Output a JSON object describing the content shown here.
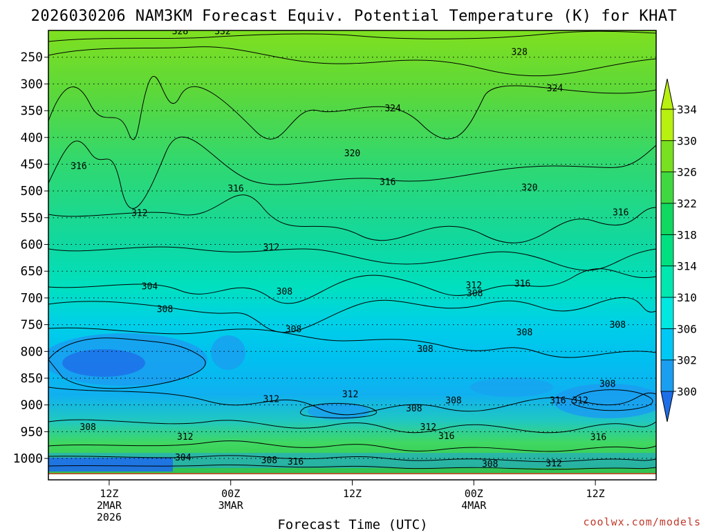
{
  "chart_data": {
    "type": "heatmap",
    "title": "2026030206 NAM3KM Forecast Equiv. Potential Temperature (K) for KHAT",
    "xlabel": "Forecast Time (UTC)",
    "ylabel": "",
    "credit": "coolwx.com/models",
    "y_axis": {
      "ticks": [
        "250",
        "300",
        "350",
        "400",
        "450",
        "500",
        "550",
        "600",
        "650",
        "700",
        "750",
        "800",
        "850",
        "900",
        "950",
        "1000"
      ],
      "values": [
        250,
        300,
        350,
        400,
        450,
        500,
        550,
        600,
        650,
        700,
        750,
        800,
        850,
        900,
        950,
        1000
      ],
      "range": [
        200,
        1040
      ]
    },
    "x_axis": {
      "range_hours": [
        0,
        60
      ],
      "ticks": [
        {
          "hour": 6,
          "lines": [
            "12Z",
            "2MAR",
            "2026"
          ]
        },
        {
          "hour": 18,
          "lines": [
            "00Z",
            "3MAR"
          ]
        },
        {
          "hour": 30,
          "lines": [
            "12Z"
          ]
        },
        {
          "hour": 42,
          "lines": [
            "00Z",
            "4MAR"
          ]
        },
        {
          "hour": 54,
          "lines": [
            "12Z"
          ]
        }
      ]
    },
    "colorbar": {
      "levels": [
        300,
        302,
        306,
        310,
        314,
        318,
        322,
        326,
        330,
        334
      ],
      "tick_labels": [
        "300",
        "302",
        "306",
        "310",
        "314",
        "318",
        "322",
        "326",
        "330",
        "334"
      ],
      "colors": [
        "#1e6ee8",
        "#1a9ef0",
        "#00c8f5",
        "#00e8e0",
        "#00e8b0",
        "#00e080",
        "#10d860",
        "#40d840",
        "#78e020",
        "#b8f010"
      ]
    },
    "contour_labels": [
      {
        "text": "328",
        "hour": 13.0,
        "p": 203
      },
      {
        "text": "332",
        "hour": 17.2,
        "p": 203
      },
      {
        "text": "328",
        "hour": 46.5,
        "p": 242
      },
      {
        "text": "324",
        "hour": 34.0,
        "p": 347
      },
      {
        "text": "324",
        "hour": 50.0,
        "p": 310
      },
      {
        "text": "320",
        "hour": 30.0,
        "p": 431
      },
      {
        "text": "320",
        "hour": 47.5,
        "p": 495
      },
      {
        "text": "316",
        "hour": 3.0,
        "p": 455
      },
      {
        "text": "316",
        "hour": 18.5,
        "p": 497
      },
      {
        "text": "316",
        "hour": 33.5,
        "p": 485
      },
      {
        "text": "316",
        "hour": 56.5,
        "p": 542
      },
      {
        "text": "316",
        "hour": 46.8,
        "p": 675
      },
      {
        "text": "312",
        "hour": 9.0,
        "p": 543
      },
      {
        "text": "312",
        "hour": 22.0,
        "p": 607
      },
      {
        "text": "312",
        "hour": 42.0,
        "p": 678
      },
      {
        "text": "312",
        "hour": 22.0,
        "p": 891
      },
      {
        "text": "312",
        "hour": 29.8,
        "p": 882
      },
      {
        "text": "312",
        "hour": 13.5,
        "p": 961
      },
      {
        "text": "304",
        "hour": 10.0,
        "p": 680
      },
      {
        "text": "304",
        "hour": 13.3,
        "p": 1000
      },
      {
        "text": "308",
        "hour": 11.5,
        "p": 723
      },
      {
        "text": "308",
        "hour": 23.3,
        "p": 690
      },
      {
        "text": "308",
        "hour": 24.2,
        "p": 760
      },
      {
        "text": "308",
        "hour": 37.2,
        "p": 797
      },
      {
        "text": "308",
        "hour": 42.1,
        "p": 693
      },
      {
        "text": "308",
        "hour": 47.0,
        "p": 766
      },
      {
        "text": "308",
        "hour": 56.2,
        "p": 752
      },
      {
        "text": "308",
        "hour": 3.9,
        "p": 943
      },
      {
        "text": "308",
        "hour": 21.8,
        "p": 1005
      },
      {
        "text": "308",
        "hour": 36.1,
        "p": 908
      },
      {
        "text": "308",
        "hour": 40.0,
        "p": 893
      },
      {
        "text": "308",
        "hour": 55.2,
        "p": 862
      },
      {
        "text": "308",
        "hour": 43.6,
        "p": 1012
      },
      {
        "text": "312",
        "hour": 37.5,
        "p": 943
      },
      {
        "text": "312",
        "hour": 52.5,
        "p": 893
      },
      {
        "text": "312",
        "hour": 49.9,
        "p": 1011
      },
      {
        "text": "316",
        "hour": 24.4,
        "p": 1008
      },
      {
        "text": "316",
        "hour": 39.3,
        "p": 960
      },
      {
        "text": "316",
        "hour": 50.3,
        "p": 893
      },
      {
        "text": "316",
        "hour": 54.3,
        "p": 962
      }
    ]
  }
}
